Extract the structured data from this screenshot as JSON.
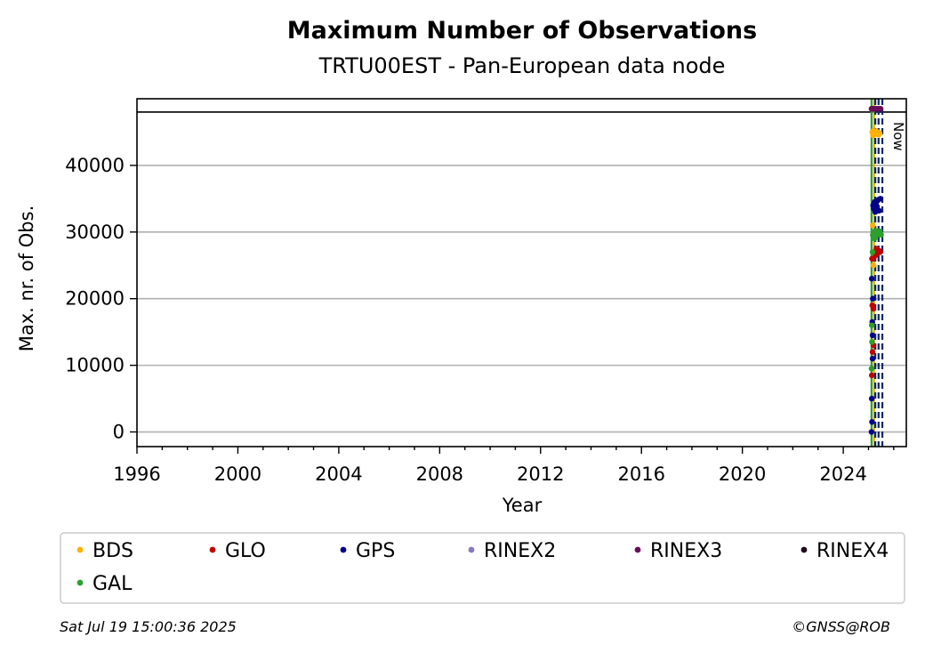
{
  "chart_data": {
    "type": "scatter",
    "title": "Maximum Number of Observations",
    "subtitle": "TRTU00EST - Pan-European data node",
    "xlabel": "Year",
    "ylabel": "Max. nr. of Obs.",
    "xlim": [
      1996,
      2026.5
    ],
    "ylim": [
      -2200,
      50000
    ],
    "xticks": [
      "1996",
      "2000",
      "2004",
      "2008",
      "2012",
      "2016",
      "2020",
      "2024"
    ],
    "yticks": [
      "0",
      "10000",
      "20000",
      "30000",
      "40000"
    ],
    "ytick_values": [
      0,
      10000,
      20000,
      30000,
      40000
    ],
    "hline": 48000,
    "grid": "y",
    "now_label": "Now",
    "now_x": 2025.55,
    "vlines": [
      {
        "x": 2025.12,
        "color": "#2ca02c",
        "style": "solid"
      },
      {
        "x": 2025.22,
        "color": "#e6a800",
        "style": "solid"
      },
      {
        "x": 2025.27,
        "color": "#0a2a6a",
        "style": "dashed"
      },
      {
        "x": 2025.4,
        "color": "#0a2a6a",
        "style": "dashed"
      },
      {
        "x": 2025.55,
        "color": "#0a2a6a",
        "style": "dashed"
      }
    ],
    "legend_placement": "below",
    "series": [
      {
        "name": "BDS",
        "color": "#ffb000",
        "x": [
          2025.15,
          2025.18,
          2025.2,
          2025.22,
          2025.25,
          2025.28,
          2025.3,
          2025.33,
          2025.36,
          2025.4,
          2025.44,
          2025.17,
          2025.2
        ],
        "y": [
          45000,
          44500,
          45200,
          44800,
          45000,
          44700,
          45100,
          44900,
          45000,
          44600,
          44800,
          31000,
          25000
        ]
      },
      {
        "name": "GLO",
        "color": "#c00000",
        "x": [
          2025.13,
          2025.16,
          2025.2,
          2025.24,
          2025.28,
          2025.32,
          2025.37,
          2025.42,
          2025.47,
          2025.15,
          2025.2,
          2025.14,
          2025.19
        ],
        "y": [
          8500,
          12000,
          26000,
          27000,
          26500,
          27500,
          26800,
          27200,
          27000,
          19000,
          13000,
          26000,
          18500
        ]
      },
      {
        "name": "GPS",
        "color": "#00008b",
        "x": [
          2025.12,
          2025.14,
          2025.16,
          2025.18,
          2025.21,
          2025.24,
          2025.27,
          2025.3,
          2025.34,
          2025.38,
          2025.42,
          2025.47,
          2025.13,
          2025.17,
          2025.15,
          2025.13,
          2025.16
        ],
        "y": [
          0,
          1500,
          11000,
          34000,
          33500,
          34500,
          33000,
          34200,
          33800,
          34800,
          33200,
          35000,
          23000,
          20000,
          16500,
          5000,
          14500
        ]
      },
      {
        "name": "RINEX2",
        "color": "#8878c0",
        "x": [],
        "y": []
      },
      {
        "name": "RINEX3",
        "color": "#6a0a5a",
        "x": [
          2025.12,
          2025.18,
          2025.25,
          2025.32,
          2025.4,
          2025.48
        ],
        "y": [
          48500,
          48500,
          48500,
          48500,
          48500,
          48500
        ]
      },
      {
        "name": "RINEX4",
        "color": "#22081e",
        "x": [],
        "y": []
      },
      {
        "name": "GAL",
        "color": "#2ca02c",
        "x": [
          2025.12,
          2025.14,
          2025.17,
          2025.2,
          2025.24,
          2025.28,
          2025.32,
          2025.36,
          2025.4,
          2025.45,
          2025.5,
          2025.13,
          2025.16
        ],
        "y": [
          9500,
          13500,
          29500,
          30000,
          29000,
          30200,
          29500,
          30000,
          29800,
          30100,
          29600,
          16000,
          27000
        ]
      }
    ]
  },
  "footer": {
    "timestamp": "Sat Jul 19 15:00:36 2025",
    "credit": "©GNSS@ROB"
  }
}
